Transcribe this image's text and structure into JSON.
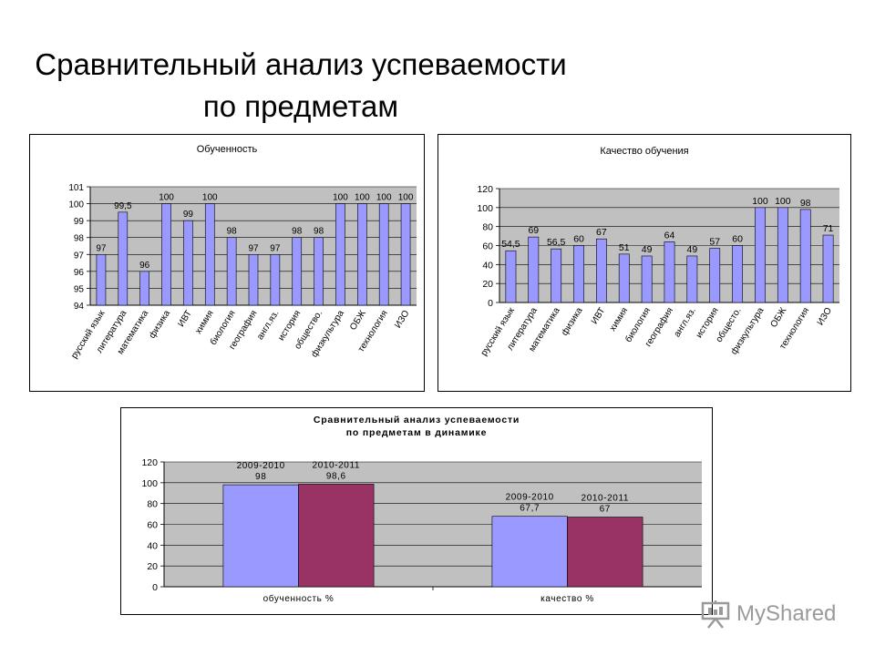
{
  "slide": {
    "title_line1": "Сравнительный анализ успеваемости",
    "title_line2": "по предметам"
  },
  "watermark": {
    "text": "MyShared",
    "icon": "presentation-easel-icon"
  },
  "colors": {
    "bar_fill": "#9999FF",
    "bar_fill_2": "#993366",
    "plot_bg": "#C0C0C0"
  },
  "chart_data": [
    {
      "type": "bar",
      "title": "Обученность",
      "categories": [
        "русский язык",
        "литература",
        "математика",
        "физика",
        "ИВТ",
        "химия",
        "биология",
        "география",
        "англ.яз.",
        "история",
        "общество.",
        "физкультура",
        "ОБЖ",
        "технология",
        "ИЗО"
      ],
      "values": [
        97,
        99.5,
        96,
        100,
        99,
        100,
        98,
        97,
        97,
        98,
        98,
        100,
        100,
        100,
        100
      ],
      "value_labels": [
        "97",
        "99,5",
        "96",
        "100",
        "99",
        "100",
        "98",
        "97",
        "97",
        "98",
        "98",
        "100",
        "100",
        "100",
        "100"
      ],
      "ylim": [
        94,
        101
      ],
      "yticks": [
        94,
        95,
        96,
        97,
        98,
        99,
        100,
        101
      ],
      "grid": true
    },
    {
      "type": "bar",
      "title": "Качество обучения",
      "categories": [
        "русский язык",
        "литература",
        "математика",
        "физика",
        "ИВТ",
        "химия",
        "биология",
        "география",
        "англ.яз.",
        "история",
        "общесто.",
        "физкультура",
        "ОБЖ",
        "технология",
        "ИЗО"
      ],
      "values": [
        54.5,
        69,
        56.5,
        60,
        67,
        51,
        49,
        64,
        49,
        57,
        60,
        100,
        100,
        98,
        71
      ],
      "value_labels": [
        "54,5",
        "69",
        "56,5",
        "60",
        "67",
        "51",
        "49",
        "64",
        "49",
        "57",
        "60",
        "100",
        "100",
        "98",
        "71"
      ],
      "ylim": [
        0,
        120
      ],
      "yticks": [
        0,
        20,
        40,
        60,
        80,
        100,
        120
      ],
      "grid": true
    },
    {
      "type": "bar",
      "title_line1": "Сравнительный анализ успеваемости",
      "title_line2": "по предметам в динамике",
      "categories": [
        "обученность %",
        "качество %"
      ],
      "series": [
        {
          "name": "2009-2010",
          "values": [
            98,
            67.7
          ],
          "value_labels": [
            "2009-2010\n98",
            "2009-2010\n67,7"
          ]
        },
        {
          "name": "2010-2011",
          "values": [
            98.6,
            67
          ],
          "value_labels": [
            "2010-2011\n98,6",
            "2010-2011\n67"
          ]
        }
      ],
      "ylim": [
        0,
        120
      ],
      "yticks": [
        0,
        20,
        40,
        60,
        80,
        100,
        120
      ],
      "grid": true
    }
  ]
}
